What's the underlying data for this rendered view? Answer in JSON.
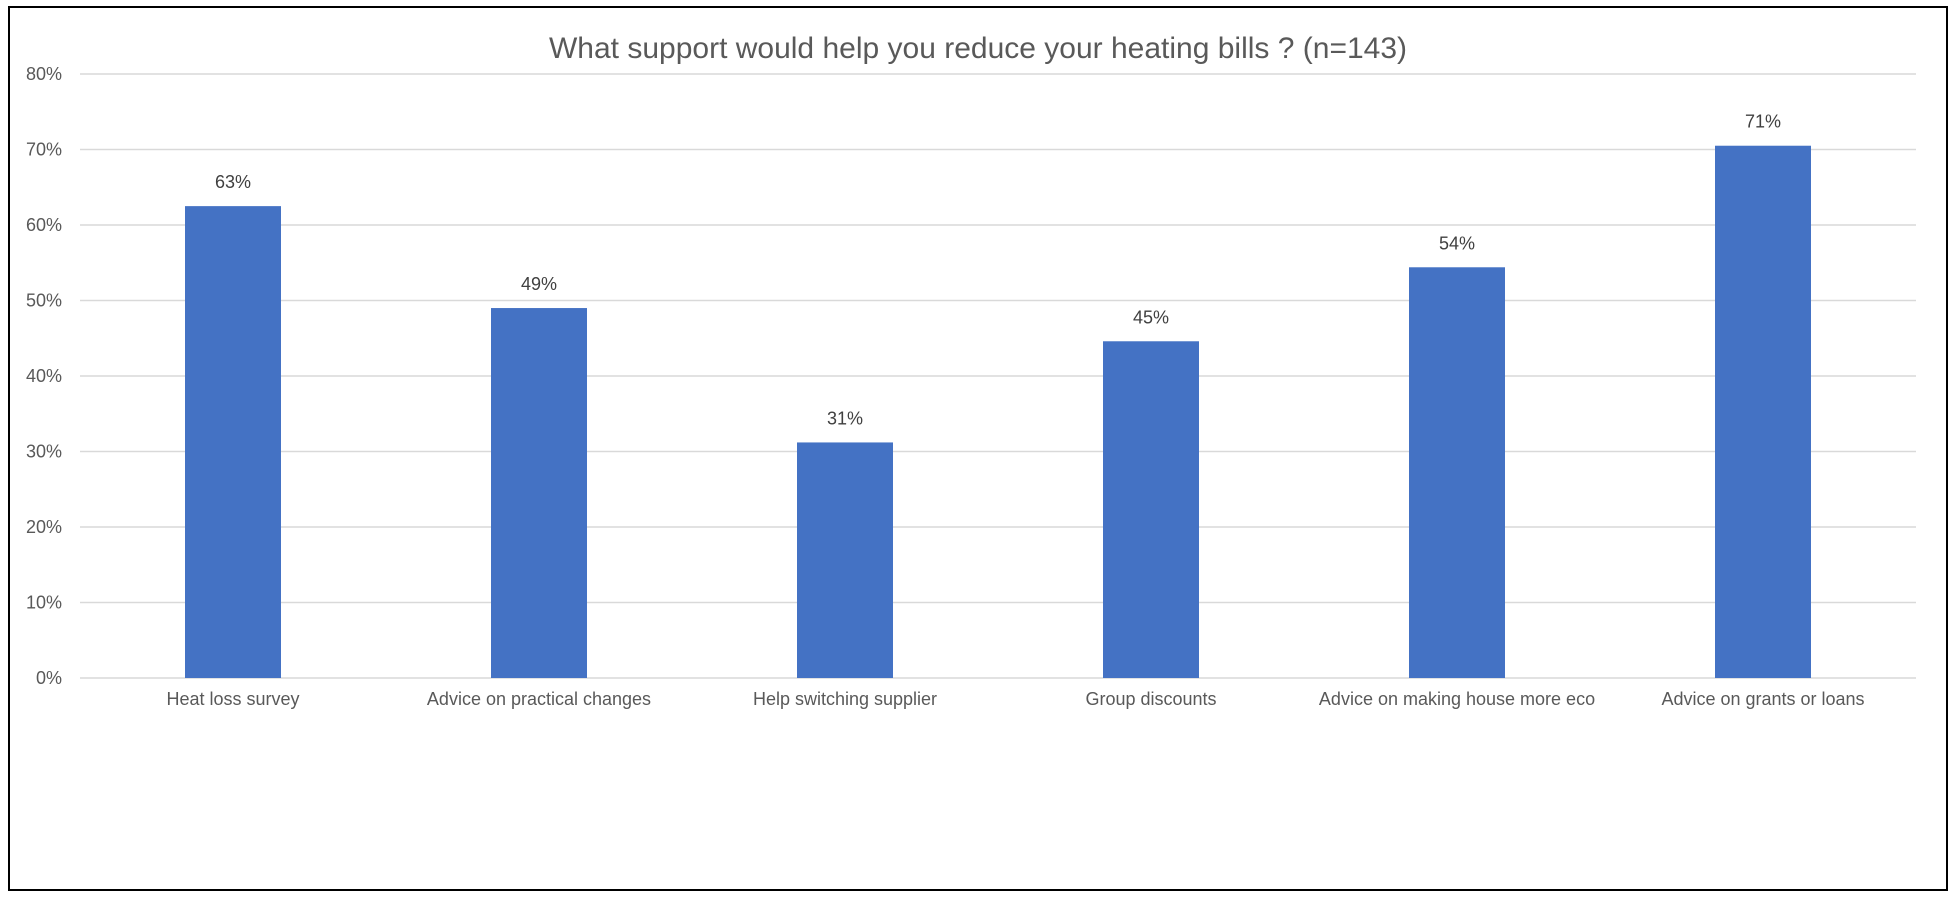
{
  "chart_data": {
    "type": "bar",
    "title": "What support would help you reduce your heating bills ? (n=143)",
    "xlabel": "",
    "ylabel": "",
    "categories": [
      "Heat loss survey",
      "Advice on practical changes",
      "Help switching supplier",
      "Group discounts",
      "Advice on making house more eco",
      "Advice on grants or loans"
    ],
    "values": [
      62.5,
      49.0,
      31.2,
      44.6,
      54.4,
      70.5
    ],
    "data_labels": [
      "63%",
      "49%",
      "31%",
      "45%",
      "54%",
      "71%"
    ],
    "ylim": [
      0,
      80
    ],
    "yticks": [
      0,
      10,
      20,
      30,
      40,
      50,
      60,
      70,
      80
    ],
    "ytick_labels": [
      "0%",
      "10%",
      "20%",
      "30%",
      "40%",
      "50%",
      "60%",
      "70%",
      "80%"
    ],
    "grid": true,
    "legend": "none",
    "bar_color": "#4472C4",
    "grid_color": "#D9D9D9"
  }
}
